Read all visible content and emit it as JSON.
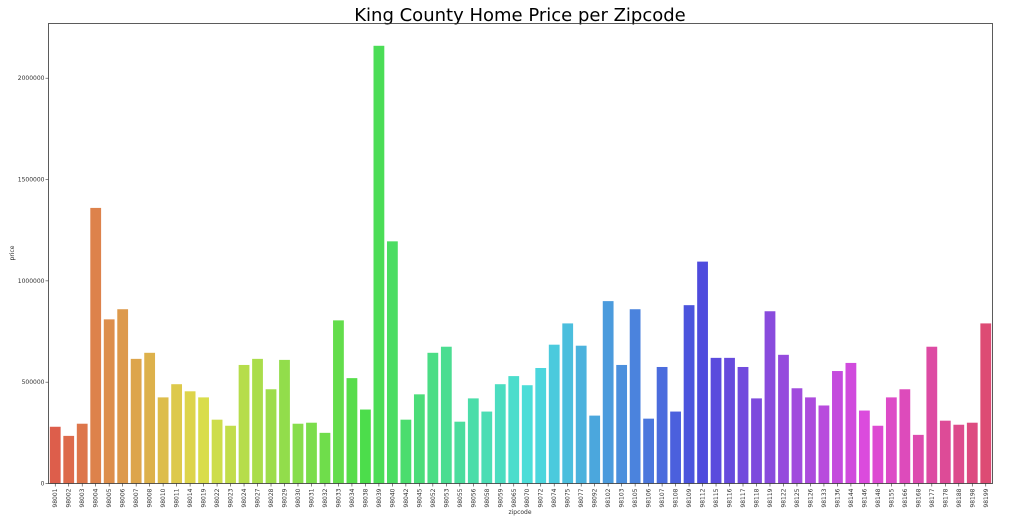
{
  "chart_data": {
    "type": "bar",
    "title": "King County Home Price per Zipcode",
    "xlabel": "zipcode",
    "ylabel": "price",
    "ylim": [
      0,
      2270000
    ],
    "yticks": [
      0,
      500000,
      1000000,
      1500000,
      2000000
    ],
    "grid": false,
    "categories": [
      "98001",
      "98002",
      "98003",
      "98004",
      "98005",
      "98006",
      "98007",
      "98008",
      "98010",
      "98011",
      "98014",
      "98019",
      "98022",
      "98023",
      "98024",
      "98027",
      "98028",
      "98029",
      "98030",
      "98031",
      "98032",
      "98033",
      "98034",
      "98038",
      "98039",
      "98040",
      "98042",
      "98045",
      "98052",
      "98053",
      "98055",
      "98056",
      "98058",
      "98059",
      "98065",
      "98070",
      "98072",
      "98074",
      "98075",
      "98077",
      "98092",
      "98102",
      "98103",
      "98105",
      "98106",
      "98107",
      "98108",
      "98109",
      "98112",
      "98115",
      "98116",
      "98117",
      "98118",
      "98119",
      "98122",
      "98125",
      "98126",
      "98133",
      "98136",
      "98144",
      "98146",
      "98148",
      "98155",
      "98166",
      "98168",
      "98177",
      "98178",
      "98188",
      "98198",
      "98199"
    ],
    "values": [
      280000,
      235000,
      295000,
      1360000,
      810000,
      860000,
      615000,
      645000,
      425000,
      490000,
      455000,
      425000,
      315000,
      285000,
      585000,
      615000,
      465000,
      610000,
      295000,
      300000,
      250000,
      805000,
      520000,
      365000,
      2160000,
      1195000,
      315000,
      440000,
      645000,
      675000,
      305000,
      420000,
      355000,
      490000,
      530000,
      485000,
      570000,
      685000,
      790000,
      680000,
      335000,
      900000,
      585000,
      860000,
      320000,
      575000,
      355000,
      880000,
      1095000,
      620000,
      620000,
      575000,
      420000,
      850000,
      635000,
      470000,
      425000,
      385000,
      555000,
      595000,
      360000,
      285000,
      425000,
      465000,
      240000,
      675000,
      310000,
      290000,
      300000,
      790000
    ]
  }
}
